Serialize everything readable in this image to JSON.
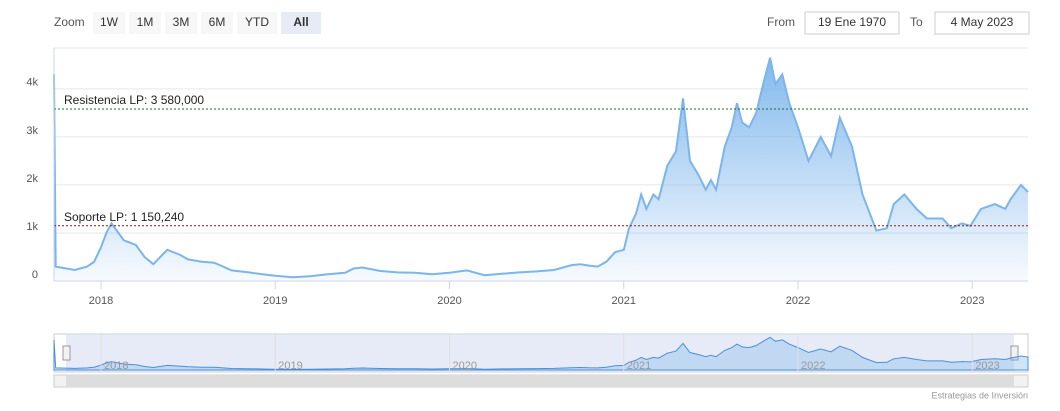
{
  "range_selector": {
    "zoom_label": "Zoom",
    "buttons": [
      "1W",
      "1M",
      "3M",
      "6M",
      "YTD",
      "All"
    ],
    "selected_index": 5,
    "from_label": "From",
    "from_value": "19 Ene 1970",
    "to_label": "To",
    "to_value": "4 May 2023"
  },
  "chart_data": {
    "type": "area",
    "color": "#7cb5ec",
    "x": [
      2017.73,
      2017.74,
      2017.85,
      2017.92,
      2017.96,
      2018.0,
      2018.03,
      2018.06,
      2018.1,
      2018.13,
      2018.2,
      2018.25,
      2018.3,
      2018.38,
      2018.45,
      2018.5,
      2018.58,
      2018.65,
      2018.75,
      2018.85,
      2018.95,
      2019.0,
      2019.1,
      2019.2,
      2019.3,
      2019.4,
      2019.45,
      2019.5,
      2019.6,
      2019.7,
      2019.8,
      2019.9,
      2020.0,
      2020.1,
      2020.2,
      2020.3,
      2020.4,
      2020.5,
      2020.6,
      2020.7,
      2020.75,
      2020.8,
      2020.85,
      2020.9,
      2020.95,
      2021.0,
      2021.03,
      2021.07,
      2021.1,
      2021.13,
      2021.17,
      2021.2,
      2021.25,
      2021.3,
      2021.34,
      2021.38,
      2021.43,
      2021.47,
      2021.5,
      2021.53,
      2021.58,
      2021.62,
      2021.65,
      2021.68,
      2021.72,
      2021.76,
      2021.8,
      2021.84,
      2021.87,
      2021.91,
      2021.95,
      2022.0,
      2022.06,
      2022.13,
      2022.19,
      2022.24,
      2022.31,
      2022.37,
      2022.45,
      2022.51,
      2022.55,
      2022.61,
      2022.68,
      2022.74,
      2022.83,
      2022.88,
      2022.94,
      2022.99,
      2023.05,
      2023.13,
      2023.19,
      2023.22,
      2023.28,
      2023.32
    ],
    "values": [
      4300,
      300,
      230,
      300,
      400,
      700,
      1000,
      1200,
      1000,
      850,
      750,
      500,
      350,
      650,
      550,
      450,
      400,
      380,
      220,
      180,
      130,
      110,
      80,
      100,
      140,
      170,
      260,
      280,
      210,
      180,
      170,
      140,
      170,
      220,
      120,
      150,
      180,
      200,
      230,
      330,
      350,
      320,
      300,
      400,
      600,
      650,
      1100,
      1400,
      1800,
      1500,
      1800,
      1700,
      2400,
      2700,
      3800,
      2500,
      2200,
      1900,
      2100,
      1900,
      2800,
      3200,
      3700,
      3300,
      3200,
      3500,
      4100,
      4650,
      4100,
      4300,
      3700,
      3200,
      2500,
      3000,
      2600,
      3400,
      2800,
      1800,
      1050,
      1100,
      1600,
      1800,
      1500,
      1300,
      1300,
      1100,
      1200,
      1150,
      1500,
      1600,
      1500,
      1700,
      2000,
      1850
    ],
    "xlim": [
      2017.73,
      2023.32
    ],
    "xticks": [
      2018,
      2019,
      2020,
      2021,
      2022,
      2023
    ],
    "ylim": [
      0,
      4850
    ],
    "yticks": [
      0,
      {
        "value": 1000,
        "label": "1k"
      },
      {
        "value": 2000,
        "label": "2k"
      },
      {
        "value": 3000,
        "label": "3k"
      },
      {
        "value": 4000,
        "label": "4k"
      }
    ],
    "grid": true,
    "plot_lines": [
      {
        "value": 3580,
        "label": "Resistencia LP: 3 580,000",
        "color": "#1b6e2a"
      },
      {
        "value": 1150.24,
        "label": "Soporte LP: 1 150,240",
        "color": "#8b1a1a"
      }
    ]
  },
  "credits": "Estrategias de Inversión"
}
